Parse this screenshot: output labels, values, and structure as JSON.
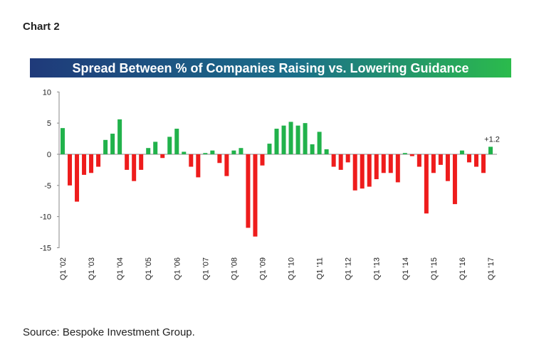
{
  "chart_data": {
    "type": "bar",
    "header": "Chart 2",
    "title": "Spread Between % of Companies Raising vs. Lowering Guidance",
    "source": "Source: Bespoke Investment Group.",
    "annotation": "+1.2",
    "categories": [
      "Q1 '02",
      null,
      null,
      null,
      "Q1 '03",
      null,
      null,
      null,
      "Q1 '04",
      null,
      null,
      null,
      "Q1 '05",
      null,
      null,
      null,
      "Q1 '06",
      null,
      null,
      null,
      "Q1 '07",
      null,
      null,
      null,
      "Q1 '08",
      null,
      null,
      null,
      "Q1 '09",
      null,
      null,
      null,
      "Q1 '10",
      null,
      null,
      null,
      "Q1 '11",
      null,
      null,
      null,
      "Q1 '12",
      null,
      null,
      null,
      "Q1 '13",
      null,
      null,
      null,
      "Q1 '14",
      null,
      null,
      null,
      "Q1 '15",
      null,
      null,
      null,
      "Q1 '16",
      null,
      null,
      null,
      "Q1 '17"
    ],
    "values": [
      4.2,
      -5.0,
      -7.6,
      -3.3,
      -3.0,
      -2.0,
      2.3,
      3.3,
      5.6,
      -2.5,
      -4.3,
      -2.5,
      1.0,
      2.0,
      -0.6,
      2.8,
      4.1,
      0.4,
      -2.0,
      -3.7,
      0.2,
      0.6,
      -1.4,
      -3.5,
      0.6,
      1.0,
      -11.8,
      -13.2,
      -1.8,
      1.7,
      4.1,
      4.6,
      5.2,
      4.6,
      5.0,
      1.6,
      3.6,
      0.8,
      -2.0,
      -2.5,
      -1.3,
      -5.8,
      -5.5,
      -5.2,
      -4.0,
      -3.0,
      -3.0,
      -4.5,
      0.2,
      -0.3,
      -2.0,
      -9.5,
      -3.0,
      -1.7,
      -4.3,
      -8.0,
      0.6,
      -1.3,
      -2.0,
      -3.0,
      1.2
    ],
    "positive_color": "#21b24b",
    "negative_color": "#ee1c1c",
    "ylim": [
      -15,
      10
    ],
    "yticks": [
      10,
      5,
      0,
      -5,
      -10,
      -15
    ]
  }
}
